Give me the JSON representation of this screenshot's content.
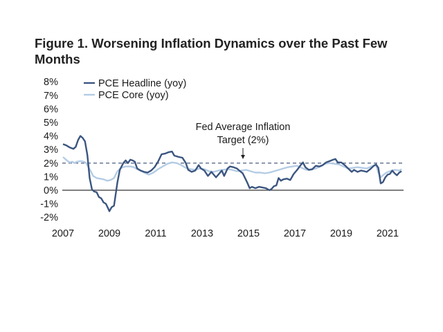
{
  "title": "Figure 1. Worsening Inflation Dynamics over the Past Few Months",
  "chart_data": {
    "type": "line",
    "title": "Figure 1. Worsening Inflation Dynamics over the Past Few Months",
    "xlabel": "",
    "ylabel": "",
    "xlim": [
      2007.0,
      2021.8
    ],
    "ylim": [
      -2,
      8
    ],
    "x_ticks": [
      2007,
      2009,
      2011,
      2013,
      2015,
      2017,
      2019,
      2021
    ],
    "x_tick_labels": [
      "2007",
      "2009",
      "2011",
      "2013",
      "2015",
      "2017",
      "2019",
      "2021"
    ],
    "y_ticks": [
      -2,
      -1,
      0,
      1,
      2,
      3,
      4,
      5,
      6,
      7,
      8
    ],
    "y_tick_labels": [
      "-2%",
      "-1%",
      "0%",
      "1%",
      "2%",
      "3%",
      "4%",
      "5%",
      "6%",
      "7%",
      "8%"
    ],
    "grid": false,
    "legend_position": "top-left",
    "reference_line": {
      "value": 2,
      "style": "dashed",
      "color": "#5a6b8a"
    },
    "annotation": {
      "lines": [
        "Fed Average Inflation",
        "Target (2%)"
      ],
      "x": 2014.8,
      "arrow_to": 2
    },
    "series": [
      {
        "name": "PCE Headline (yoy)",
        "color": "#3b5580",
        "points": [
          [
            2007.0,
            3.4
          ],
          [
            2007.15,
            3.3
          ],
          [
            2007.3,
            3.15
          ],
          [
            2007.45,
            3.05
          ],
          [
            2007.55,
            3.2
          ],
          [
            2007.65,
            3.7
          ],
          [
            2007.75,
            4.0
          ],
          [
            2007.85,
            3.85
          ],
          [
            2007.95,
            3.6
          ],
          [
            2008.05,
            2.6
          ],
          [
            2008.15,
            0.9
          ],
          [
            2008.25,
            0.05
          ],
          [
            2008.35,
            -0.1
          ],
          [
            2008.45,
            -0.15
          ],
          [
            2008.55,
            -0.5
          ],
          [
            2008.65,
            -0.6
          ],
          [
            2008.75,
            -0.9
          ],
          [
            2008.85,
            -1.0
          ],
          [
            2008.95,
            -1.35
          ],
          [
            2009.0,
            -1.55
          ],
          [
            2009.1,
            -1.25
          ],
          [
            2009.2,
            -1.15
          ],
          [
            2009.35,
            0.6
          ],
          [
            2009.45,
            1.5
          ],
          [
            2009.6,
            2.0
          ],
          [
            2009.7,
            2.2
          ],
          [
            2009.8,
            2.0
          ],
          [
            2009.9,
            2.25
          ],
          [
            2010.0,
            2.2
          ],
          [
            2010.1,
            2.1
          ],
          [
            2010.2,
            1.6
          ],
          [
            2010.35,
            1.45
          ],
          [
            2010.5,
            1.35
          ],
          [
            2010.65,
            1.3
          ],
          [
            2010.8,
            1.45
          ],
          [
            2010.95,
            1.7
          ],
          [
            2011.1,
            2.1
          ],
          [
            2011.25,
            2.65
          ],
          [
            2011.4,
            2.7
          ],
          [
            2011.55,
            2.8
          ],
          [
            2011.7,
            2.85
          ],
          [
            2011.8,
            2.55
          ],
          [
            2011.9,
            2.5
          ],
          [
            2012.0,
            2.45
          ],
          [
            2012.15,
            2.4
          ],
          [
            2012.3,
            2.0
          ],
          [
            2012.4,
            1.5
          ],
          [
            2012.55,
            1.35
          ],
          [
            2012.7,
            1.45
          ],
          [
            2012.85,
            1.85
          ],
          [
            2012.95,
            1.6
          ],
          [
            2013.1,
            1.45
          ],
          [
            2013.25,
            1.05
          ],
          [
            2013.4,
            1.35
          ],
          [
            2013.5,
            1.15
          ],
          [
            2013.6,
            0.95
          ],
          [
            2013.75,
            1.25
          ],
          [
            2013.85,
            1.45
          ],
          [
            2013.95,
            1.05
          ],
          [
            2014.1,
            1.6
          ],
          [
            2014.2,
            1.75
          ],
          [
            2014.35,
            1.7
          ],
          [
            2014.5,
            1.6
          ],
          [
            2014.6,
            1.45
          ],
          [
            2014.75,
            1.25
          ],
          [
            2014.85,
            0.9
          ],
          [
            2014.95,
            0.55
          ],
          [
            2015.05,
            0.15
          ],
          [
            2015.15,
            0.25
          ],
          [
            2015.3,
            0.15
          ],
          [
            2015.45,
            0.25
          ],
          [
            2015.6,
            0.2
          ],
          [
            2015.75,
            0.15
          ],
          [
            2015.9,
            0.0
          ],
          [
            2016.0,
            0.1
          ],
          [
            2016.1,
            0.3
          ],
          [
            2016.2,
            0.35
          ],
          [
            2016.3,
            0.9
          ],
          [
            2016.4,
            0.7
          ],
          [
            2016.5,
            0.8
          ],
          [
            2016.65,
            0.85
          ],
          [
            2016.8,
            0.75
          ],
          [
            2016.95,
            1.2
          ],
          [
            2017.1,
            1.5
          ],
          [
            2017.25,
            1.85
          ],
          [
            2017.35,
            2.05
          ],
          [
            2017.45,
            1.7
          ],
          [
            2017.6,
            1.5
          ],
          [
            2017.75,
            1.55
          ],
          [
            2017.9,
            1.8
          ],
          [
            2018.05,
            1.75
          ],
          [
            2018.2,
            1.85
          ],
          [
            2018.35,
            2.05
          ],
          [
            2018.5,
            2.15
          ],
          [
            2018.65,
            2.25
          ],
          [
            2018.75,
            2.3
          ],
          [
            2018.85,
            2.05
          ],
          [
            2019.0,
            2.05
          ],
          [
            2019.15,
            1.85
          ],
          [
            2019.3,
            1.6
          ],
          [
            2019.45,
            1.35
          ],
          [
            2019.55,
            1.5
          ],
          [
            2019.7,
            1.35
          ],
          [
            2019.85,
            1.45
          ],
          [
            2020.0,
            1.4
          ],
          [
            2020.1,
            1.35
          ],
          [
            2020.25,
            1.55
          ],
          [
            2020.4,
            1.8
          ],
          [
            2020.5,
            1.9
          ],
          [
            2020.6,
            1.65
          ],
          [
            2020.7,
            0.5
          ],
          [
            2020.8,
            0.6
          ],
          [
            2020.9,
            0.95
          ],
          [
            2021.0,
            1.15
          ],
          [
            2021.1,
            1.2
          ],
          [
            2021.2,
            1.45
          ],
          [
            2021.3,
            1.25
          ],
          [
            2021.4,
            1.1
          ],
          [
            2021.5,
            1.3
          ],
          [
            2021.6,
            1.4
          ]
        ]
      },
      {
        "name": "PCE Core (yoy)",
        "color": "#b4cce4",
        "points": [
          [
            2007.0,
            2.45
          ],
          [
            2007.1,
            2.3
          ],
          [
            2007.2,
            2.15
          ],
          [
            2007.3,
            2.05
          ],
          [
            2007.4,
            2.1
          ],
          [
            2007.5,
            2.0
          ],
          [
            2007.6,
            2.1
          ],
          [
            2007.75,
            2.15
          ],
          [
            2007.9,
            2.1
          ],
          [
            2008.0,
            2.0
          ],
          [
            2008.1,
            1.7
          ],
          [
            2008.2,
            1.4
          ],
          [
            2008.3,
            1.05
          ],
          [
            2008.45,
            0.9
          ],
          [
            2008.6,
            0.85
          ],
          [
            2008.75,
            0.8
          ],
          [
            2008.9,
            0.7
          ],
          [
            2009.05,
            0.75
          ],
          [
            2009.2,
            0.9
          ],
          [
            2009.35,
            1.4
          ],
          [
            2009.5,
            1.65
          ],
          [
            2009.7,
            1.75
          ],
          [
            2009.9,
            1.75
          ],
          [
            2010.05,
            1.7
          ],
          [
            2010.2,
            1.55
          ],
          [
            2010.4,
            1.4
          ],
          [
            2010.55,
            1.25
          ],
          [
            2010.7,
            1.15
          ],
          [
            2010.9,
            1.3
          ],
          [
            2011.1,
            1.55
          ],
          [
            2011.3,
            1.75
          ],
          [
            2011.5,
            1.95
          ],
          [
            2011.7,
            2.05
          ],
          [
            2011.9,
            2.0
          ],
          [
            2012.1,
            1.85
          ],
          [
            2012.3,
            1.65
          ],
          [
            2012.5,
            1.55
          ],
          [
            2012.7,
            1.5
          ],
          [
            2012.9,
            1.6
          ],
          [
            2013.1,
            1.55
          ],
          [
            2013.3,
            1.4
          ],
          [
            2013.5,
            1.35
          ],
          [
            2013.7,
            1.45
          ],
          [
            2013.9,
            1.5
          ],
          [
            2014.1,
            1.55
          ],
          [
            2014.3,
            1.5
          ],
          [
            2014.5,
            1.4
          ],
          [
            2014.7,
            1.45
          ],
          [
            2014.9,
            1.5
          ],
          [
            2015.1,
            1.4
          ],
          [
            2015.3,
            1.3
          ],
          [
            2015.5,
            1.3
          ],
          [
            2015.7,
            1.25
          ],
          [
            2015.9,
            1.3
          ],
          [
            2016.1,
            1.4
          ],
          [
            2016.3,
            1.5
          ],
          [
            2016.5,
            1.6
          ],
          [
            2016.7,
            1.7
          ],
          [
            2016.9,
            1.75
          ],
          [
            2017.1,
            1.8
          ],
          [
            2017.3,
            1.65
          ],
          [
            2017.5,
            1.5
          ],
          [
            2017.7,
            1.5
          ],
          [
            2017.9,
            1.6
          ],
          [
            2018.1,
            1.75
          ],
          [
            2018.3,
            1.95
          ],
          [
            2018.5,
            2.0
          ],
          [
            2018.7,
            1.95
          ],
          [
            2018.9,
            1.9
          ],
          [
            2019.1,
            1.75
          ],
          [
            2019.3,
            1.6
          ],
          [
            2019.5,
            1.65
          ],
          [
            2019.7,
            1.7
          ],
          [
            2019.9,
            1.65
          ],
          [
            2020.1,
            1.6
          ],
          [
            2020.3,
            1.75
          ],
          [
            2020.5,
            1.85
          ],
          [
            2020.6,
            1.3
          ],
          [
            2020.7,
            0.95
          ],
          [
            2020.8,
            1.1
          ],
          [
            2020.95,
            1.3
          ],
          [
            2021.1,
            1.4
          ],
          [
            2021.3,
            1.5
          ],
          [
            2021.5,
            1.45
          ],
          [
            2021.6,
            1.55
          ]
        ]
      }
    ]
  },
  "legend": [
    {
      "label": "PCE Headline (yoy)",
      "color": "#3b5580"
    },
    {
      "label": "PCE Core (yoy)",
      "color": "#b4cce4"
    }
  ],
  "annotation": {
    "line1": "Fed Average Inflation",
    "line2": "Target (2%)"
  }
}
